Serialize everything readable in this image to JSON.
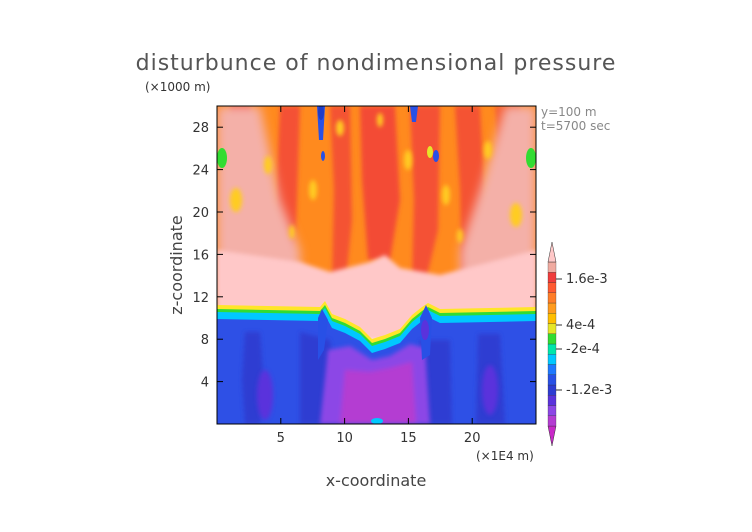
{
  "chart_data": {
    "type": "heatmap",
    "title": "disturbunce of nondimensional pressure",
    "xlabel": "x-coordinate",
    "ylabel": "z-coordinate",
    "x_unit": "(×1E4 m)",
    "y_unit": "(×1000 m)",
    "xlim": [
      0,
      25
    ],
    "ylim": [
      0,
      30
    ],
    "x_ticks": [
      "5",
      "10",
      "15",
      "20"
    ],
    "x_tick_values": [
      5,
      10,
      15,
      20
    ],
    "y_ticks": [
      "4",
      "8",
      "12",
      "16",
      "20",
      "24",
      "28"
    ],
    "y_tick_values": [
      4,
      8,
      12,
      16,
      20,
      24,
      28
    ],
    "annotations": [
      "y=100 m",
      "t=5700 sec"
    ],
    "colorbar": {
      "labels": [
        "1.6e-3",
        "4e-4",
        "-2e-4",
        "-1.2e-3"
      ],
      "colors": [
        "#c828c8",
        "#b43cd2",
        "#8c46e6",
        "#5a32dc",
        "#2d3cd2",
        "#2850e6",
        "#1e78ff",
        "#00c8ff",
        "#00e6aa",
        "#32dc32",
        "#e6e628",
        "#ffbe00",
        "#ff9b1e",
        "#ff7d28",
        "#ff5a32",
        "#f03c3c",
        "#f0aaa0",
        "#ffc8c8"
      ]
    }
  }
}
